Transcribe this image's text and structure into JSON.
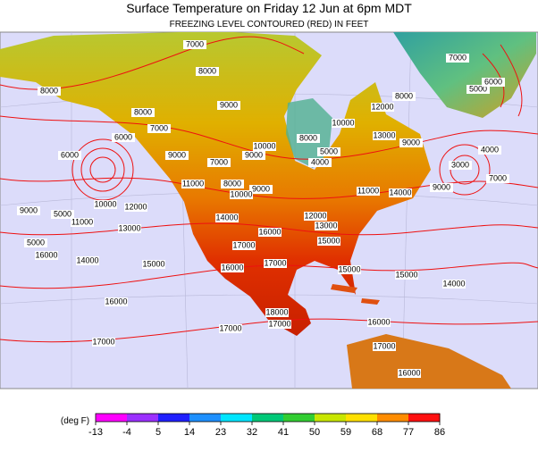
{
  "header": {
    "title": "Surface Temperature on Friday 12 Jun at 6pm MDT",
    "subtitle": "FREEZING LEVEL CONTOURED (RED) IN FEET"
  },
  "contour_labels": [
    "7000",
    "8000",
    "8000",
    "8000",
    "7000",
    "6000",
    "9000",
    "10000",
    "9000",
    "9000",
    "7000",
    "8000",
    "9000",
    "10000",
    "11000",
    "8000",
    "10000",
    "5000",
    "4000",
    "12000",
    "13000",
    "8000",
    "9000",
    "7000",
    "5000",
    "6000",
    "4000",
    "3000",
    "7000",
    "9000",
    "11000",
    "14000",
    "12000",
    "13000",
    "15000",
    "14000",
    "16000",
    "17000",
    "17000",
    "16000",
    "15000",
    "15000",
    "14000",
    "15000",
    "14000",
    "16000",
    "13000",
    "12000",
    "10000",
    "11000",
    "9000",
    "6000",
    "5000",
    "5000",
    "16000",
    "18000",
    "17000",
    "17000",
    "17000",
    "16000",
    "17000",
    "16000"
  ],
  "colorbar": {
    "unit_label": "(deg F)",
    "ticks": [
      -13,
      -4,
      5,
      14,
      23,
      32,
      41,
      50,
      59,
      68,
      77,
      86
    ],
    "colors": [
      "#ff00ff",
      "#9b30ff",
      "#2020ff",
      "#1e90ff",
      "#00e5ff",
      "#00c878",
      "#32cd32",
      "#c8e600",
      "#ffe000",
      "#ff8c00",
      "#ff1010"
    ]
  }
}
